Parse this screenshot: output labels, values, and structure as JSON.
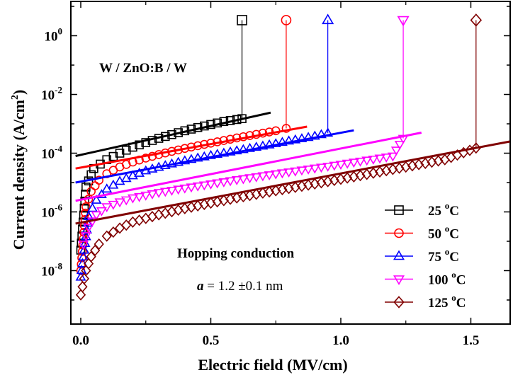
{
  "chart_data": {
    "type": "scatter",
    "y_scale": "log",
    "xlabel": "Electric field (MV/cm)",
    "ylabel": "Current density (A/cm²)",
    "xlim": [
      -0.02,
      1.65
    ],
    "ylim": [
      3e-10,
      10
    ],
    "x_ticks": [
      {
        "value": 0.0,
        "label": "0.0"
      },
      {
        "value": 0.5,
        "label": "0.5"
      },
      {
        "value": 1.0,
        "label": "1.0"
      },
      {
        "value": 1.5,
        "label": "1.5"
      }
    ],
    "y_ticks": [
      {
        "value": 1,
        "base": "10",
        "exp": "0"
      },
      {
        "value": 0.01,
        "base": "10",
        "exp": "-2"
      },
      {
        "value": 0.0001,
        "base": "10",
        "exp": "-4"
      },
      {
        "value": 1e-06,
        "base": "10",
        "exp": "-6"
      },
      {
        "value": 1e-08,
        "base": "10",
        "exp": "-8"
      }
    ],
    "annotations": {
      "device": "W / ZnO:B / W",
      "mechanism": "Hopping conduction",
      "param_symbol": "a",
      "param_value": " = 1.2 ±0.1 nm"
    },
    "legend_position": "bottom-right",
    "series": [
      {
        "name": "25 °C",
        "label_num": "25 ",
        "label_sup": "o",
        "label_unit": "C",
        "color": "#000000",
        "marker": "square",
        "x": [
          0.0,
          0.02,
          0.05,
          0.1,
          0.15,
          0.2,
          0.25,
          0.3,
          0.35,
          0.4,
          0.45,
          0.5,
          0.55,
          0.6,
          0.62
        ],
        "y": [
          5e-08,
          7e-06,
          3e-05,
          6e-05,
          0.0001,
          0.00016,
          0.00023,
          0.00032,
          0.00043,
          0.00058,
          0.00075,
          0.00095,
          0.0012,
          0.0014,
          0.0015
        ],
        "marker_tip": {
          "x": 0.62,
          "y": 3.4
        },
        "fit": {
          "x": [
            -0.02,
            0.73
          ],
          "y": [
            8e-05,
            0.0024
          ]
        }
      },
      {
        "name": "50 °C",
        "label_num": "50 ",
        "label_sup": "o",
        "label_unit": "C",
        "color": "#ff0000",
        "marker": "circle",
        "x": [
          0.0,
          0.02,
          0.04,
          0.07,
          0.1,
          0.15,
          0.2,
          0.25,
          0.3,
          0.35,
          0.4,
          0.45,
          0.5,
          0.55,
          0.6,
          0.65,
          0.7,
          0.75,
          0.79
        ],
        "y": [
          1e-08,
          1.5e-06,
          5e-06,
          1.2e-05,
          2e-05,
          3.4e-05,
          5e-05,
          6.8e-05,
          9e-05,
          0.000115,
          0.000145,
          0.00018,
          0.00022,
          0.00027,
          0.00033,
          0.0004,
          0.00048,
          0.00058,
          0.0007
        ],
        "marker_tip": {
          "x": 0.79,
          "y": 3.4
        },
        "fit": {
          "x": [
            -0.02,
            0.87
          ],
          "y": [
            3e-05,
            0.0008
          ]
        }
      },
      {
        "name": "75 °C",
        "label_num": "75 ",
        "label_sup": "o",
        "label_unit": "C",
        "color": "#0000ff",
        "marker": "triangle-up",
        "x": [
          0.0,
          0.03,
          0.06,
          0.1,
          0.15,
          0.2,
          0.25,
          0.3,
          0.35,
          0.4,
          0.45,
          0.5,
          0.55,
          0.6,
          0.65,
          0.7,
          0.75,
          0.8,
          0.85,
          0.9,
          0.95
        ],
        "y": [
          6e-09,
          7e-07,
          2.5e-06,
          6e-06,
          1.1e-05,
          1.7e-05,
          2.5e-05,
          3.3e-05,
          4.3e-05,
          5.5e-05,
          6.8e-05,
          8.3e-05,
          0.0001,
          0.00012,
          0.000145,
          0.000175,
          0.00021,
          0.00026,
          0.00031,
          0.00038,
          0.00048
        ],
        "marker_tip": {
          "x": 0.95,
          "y": 3.4
        },
        "fit": {
          "x": [
            -0.02,
            1.05
          ],
          "y": [
            1e-05,
            0.0006
          ]
        }
      },
      {
        "name": "100 °C",
        "label_num": "100 ",
        "label_sup": "o",
        "label_unit": "C",
        "color": "#ff00ff",
        "marker": "triangle-down",
        "x": [
          0.01,
          0.03,
          0.06,
          0.1,
          0.15,
          0.2,
          0.3,
          0.4,
          0.5,
          0.6,
          0.7,
          0.8,
          0.9,
          1.0,
          1.1,
          1.2,
          1.24
        ],
        "y": [
          8e-08,
          3e-07,
          8e-07,
          1.5e-06,
          2.2e-06,
          3e-06,
          4.6e-06,
          6.5e-06,
          9e-06,
          1.25e-05,
          1.7e-05,
          2.3e-05,
          3.1e-05,
          4.2e-05,
          5.8e-05,
          8e-05,
          0.00032
        ],
        "marker_tip": {
          "x": 1.24,
          "y": 3.4
        },
        "fit": {
          "x": [
            -0.02,
            1.31
          ],
          "y": [
            2.4e-06,
            0.0005
          ]
        }
      },
      {
        "name": "125 °C",
        "label_num": "125 ",
        "label_sup": "o",
        "label_unit": "C",
        "color": "#800000",
        "marker": "diamond",
        "x": [
          0.0,
          0.02,
          0.04,
          0.07,
          0.1,
          0.15,
          0.2,
          0.3,
          0.4,
          0.5,
          0.6,
          0.7,
          0.8,
          0.9,
          1.0,
          1.1,
          1.2,
          1.3,
          1.4,
          1.52
        ],
        "y": [
          1.5e-09,
          1e-08,
          3e-08,
          8e-08,
          1.5e-07,
          2.8e-07,
          4.5e-07,
          8e-07,
          1.3e-06,
          2e-06,
          3e-06,
          4.4e-06,
          6.3e-06,
          9e-06,
          1.3e-05,
          1.9e-05,
          2.8e-05,
          4.1e-05,
          6e-05,
          0.00015
        ],
        "marker_tip": {
          "x": 1.52,
          "y": 3.4
        },
        "fit": {
          "x": [
            -0.02,
            1.65
          ],
          "y": [
            4e-07,
            0.00025
          ]
        }
      }
    ]
  }
}
